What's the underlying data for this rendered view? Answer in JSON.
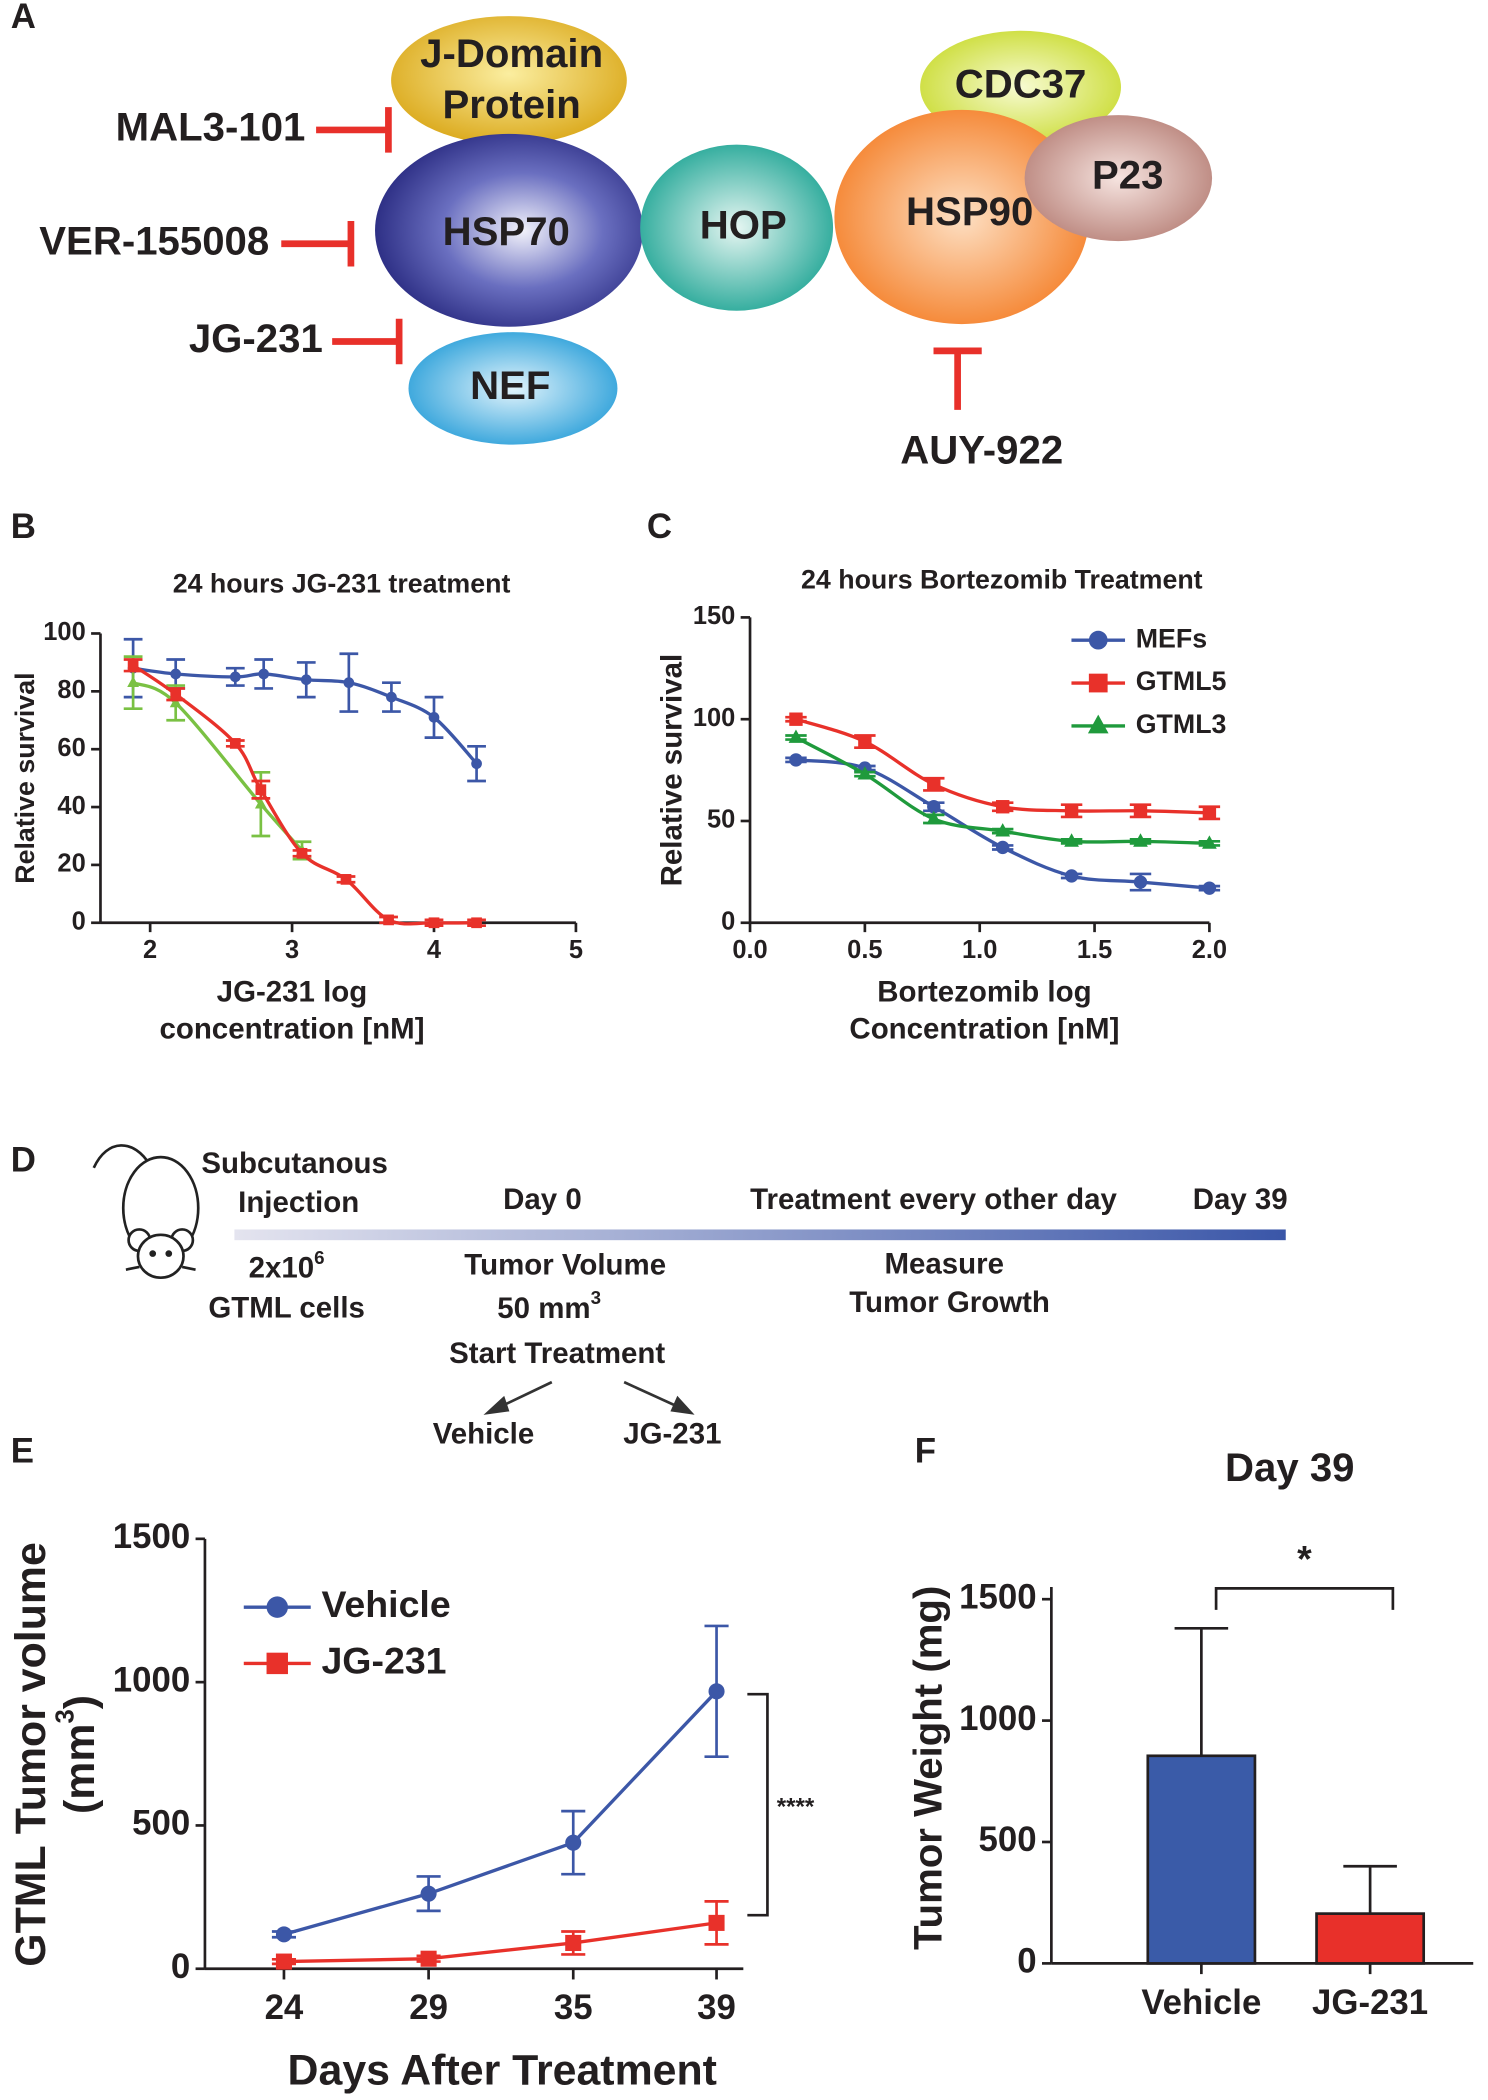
{
  "panel_a": {
    "label": "A",
    "nodes": [
      {
        "lines": [
          "J-Domain",
          "Protein"
        ]
      },
      {
        "lines": [
          "HSP70"
        ]
      },
      {
        "lines": [
          "NEF"
        ]
      },
      {
        "lines": [
          "HOP"
        ]
      },
      {
        "lines": [
          "HSP90"
        ]
      },
      {
        "lines": [
          "CDC37"
        ]
      },
      {
        "lines": [
          "P23"
        ]
      }
    ],
    "inhibitors": [
      "MAL3-101",
      "VER-155008",
      "JG-231",
      "AUY-922"
    ]
  },
  "panel_d": {
    "label": "D",
    "injection": [
      "Subcutanous",
      "Injection"
    ],
    "day_start": "Day 0",
    "treatment": "Treatment every other day",
    "day_end": "Day 39",
    "cells": [
      [
        "2x10",
        "6"
      ],
      "GTML cells"
    ],
    "start": [
      "Tumor Volume",
      [
        "50 mm",
        "3"
      ],
      "Start Treatment"
    ],
    "arms": [
      "Vehicle",
      "JG-231"
    ],
    "measure": [
      "Measure",
      "Tumor Growth"
    ]
  },
  "chart_data": [
    {
      "panel": "B",
      "type": "line",
      "title": "24 hours JG-231 treatment",
      "xlabel": [
        "JG-231 log",
        "concentration [nM]"
      ],
      "ylabel": "Relative survival",
      "xlim": [
        1.65,
        5
      ],
      "xticks": [
        2,
        3,
        4,
        5
      ],
      "ylim": [
        0,
        100
      ],
      "yticks": [
        0,
        20,
        40,
        60,
        80,
        100
      ],
      "curve": "smooth",
      "series": [
        {
          "color": "#3c57a7",
          "marker": "circle",
          "x": [
            1.88,
            2.18,
            2.6,
            2.8,
            3.1,
            3.4,
            3.7,
            4.0,
            4.3
          ],
          "values": [
            88,
            86,
            85,
            86,
            84,
            83,
            78,
            71,
            55
          ],
          "errors": [
            10,
            5,
            3,
            5,
            6,
            10,
            5,
            7,
            6
          ]
        },
        {
          "color": "#7ac143",
          "marker": "triangle",
          "x": [
            1.88,
            2.18,
            2.78,
            3.07
          ],
          "values": [
            83,
            76,
            41,
            25
          ],
          "errors": [
            9,
            6,
            11,
            3
          ]
        },
        {
          "color": "#e8312a",
          "marker": "square",
          "x": [
            1.88,
            2.18,
            2.6,
            2.78,
            3.07,
            3.38,
            3.68,
            4.0,
            4.3
          ],
          "values": [
            89,
            79,
            62,
            46,
            24,
            15,
            1,
            0,
            0
          ],
          "errors": [
            2,
            2,
            1,
            3,
            1,
            1,
            1,
            1,
            1
          ]
        }
      ]
    },
    {
      "panel": "C",
      "type": "line",
      "title": "24 hours Bortezomib Treatment",
      "xlabel": [
        "Bortezomib log",
        "Concentration [nM]"
      ],
      "ylabel": "Relative survival",
      "xlim": [
        0,
        2
      ],
      "xticks": [
        {
          "value": 0,
          "label": "0.0"
        },
        0.5,
        {
          "value": 1,
          "label": "1.0"
        },
        1.5,
        {
          "value": 2,
          "label": "2.0"
        }
      ],
      "ylim": [
        0,
        150
      ],
      "yticks": [
        0,
        50,
        100,
        150
      ],
      "curve": "smooth",
      "legend": "upper right",
      "series": [
        {
          "name": "MEFs",
          "color": "#3c57a7",
          "marker": "circle",
          "x": [
            0.2,
            0.5,
            0.8,
            1.1,
            1.4,
            1.7,
            2.0
          ],
          "values": [
            80,
            76,
            57,
            37,
            23,
            20,
            17
          ],
          "errors": [
            1,
            1,
            2,
            1,
            1,
            4,
            1
          ]
        },
        {
          "name": "GTML5",
          "color": "#e8312a",
          "marker": "square",
          "x": [
            0.2,
            0.5,
            0.8,
            1.1,
            1.4,
            1.7,
            2.0
          ],
          "values": [
            100,
            89,
            68,
            57,
            55,
            55,
            54
          ],
          "errors": [
            1,
            3,
            3,
            2,
            3,
            3,
            3
          ]
        },
        {
          "name": "GTML3",
          "color": "#1f9a3c",
          "marker": "triangle",
          "x": [
            0.2,
            0.5,
            0.8,
            1.1,
            1.4,
            1.7,
            2.0
          ],
          "values": [
            91,
            73,
            51,
            45,
            40,
            40,
            39
          ],
          "errors": [
            1,
            1,
            2,
            1,
            1,
            1,
            1
          ]
        }
      ]
    },
    {
      "panel": "E",
      "type": "line",
      "xlabel": "Days After Treatment",
      "ylabel": [
        "GTML Tumor volume",
        [
          "(mm",
          "3",
          ")"
        ]
      ],
      "categories": [
        24,
        29,
        35,
        39
      ],
      "ylim": [
        0,
        1500
      ],
      "yticks": [
        0,
        500,
        1000,
        1500
      ],
      "curve": "straight",
      "legend": "upper left",
      "annotation": "****",
      "series": [
        {
          "name": "Vehicle",
          "color": "#3c57a7",
          "marker": "circle",
          "values": [
            120,
            262,
            440,
            968
          ],
          "errors": [
            10,
            60,
            110,
            228
          ]
        },
        {
          "name": "JG-231",
          "color": "#e8312a",
          "marker": "square",
          "values": [
            25,
            35,
            90,
            160
          ],
          "errors": [
            8,
            10,
            40,
            75
          ]
        }
      ]
    },
    {
      "panel": "F",
      "type": "bar",
      "title": "Day 39",
      "ylabel": "Tumor Weight  (mg)",
      "categories": [
        "Vehicle",
        "JG-231"
      ],
      "values": [
        855,
        205
      ],
      "errors": [
        525,
        195
      ],
      "colors": [
        "#3a5ba8",
        "#e8302a"
      ],
      "ylim": [
        0,
        1550
      ],
      "yticks": [
        0,
        500,
        1000,
        1500
      ],
      "annotation": "*"
    }
  ]
}
